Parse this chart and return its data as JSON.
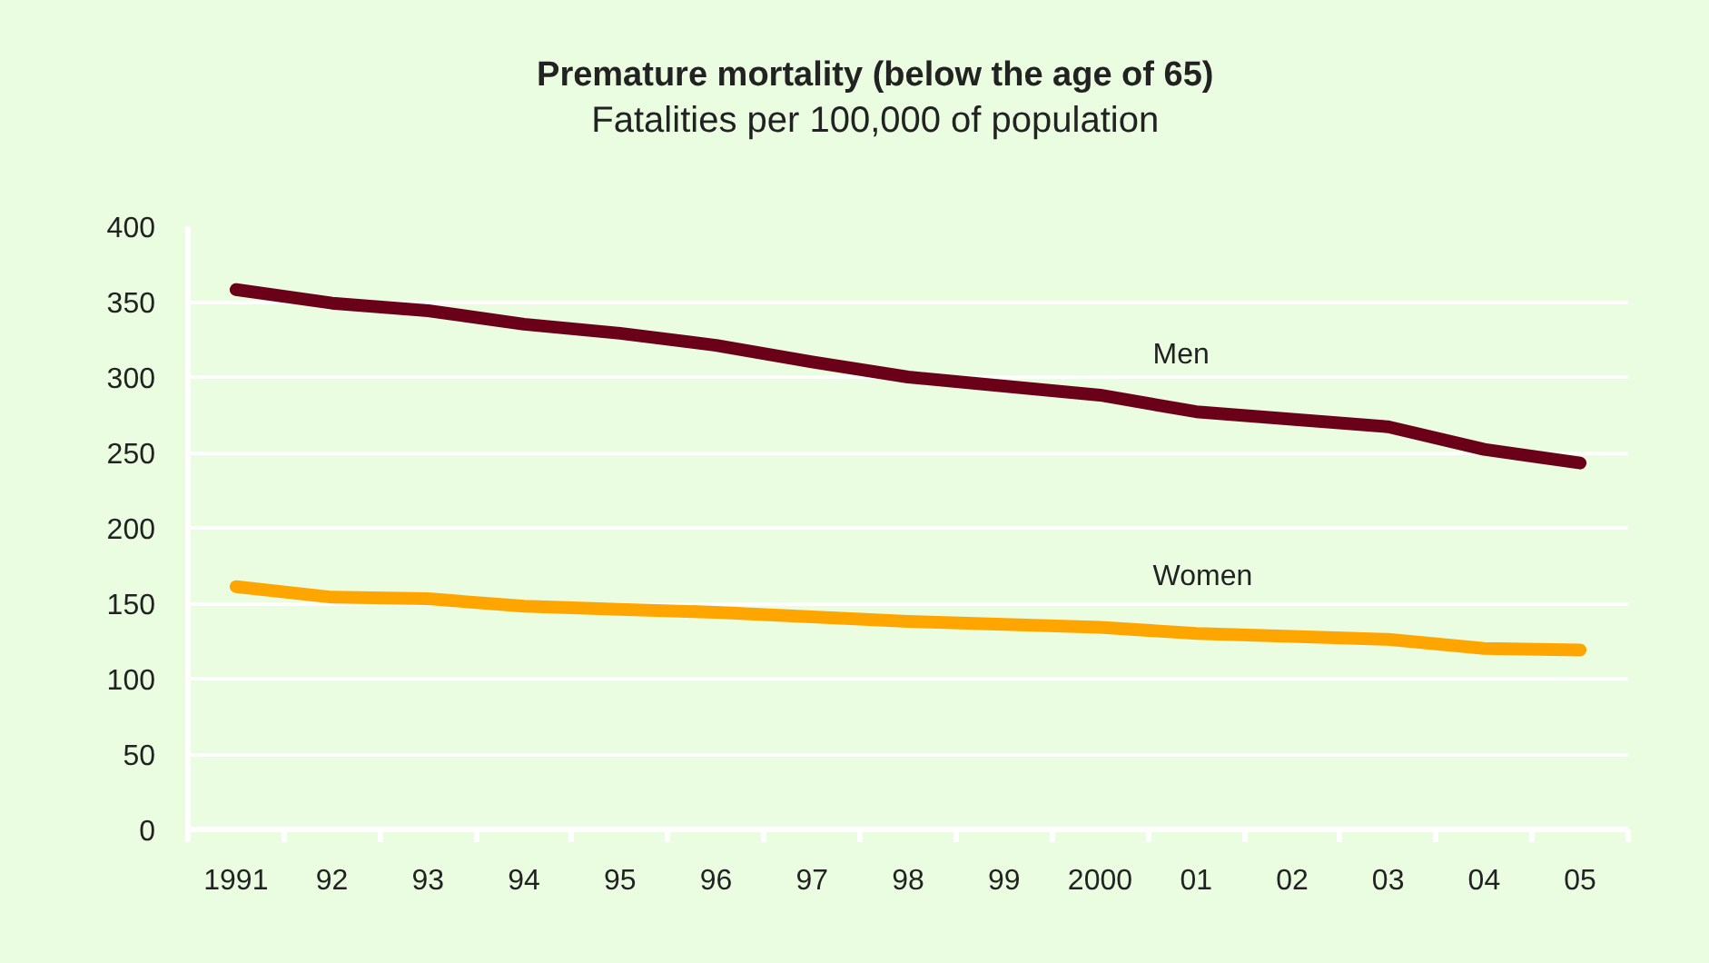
{
  "chart_data": {
    "type": "line",
    "title": "Premature mortality (below the age of 65)",
    "subtitle": "Fatalities per 100,000 of population",
    "categories": [
      "1991",
      "92",
      "93",
      "94",
      "95",
      "96",
      "97",
      "98",
      "99",
      "2000",
      "01",
      "02",
      "03",
      "04",
      "05"
    ],
    "series": [
      {
        "name": "Men",
        "color": "#6b0019",
        "values": [
          358,
          349,
          344,
          335,
          329,
          321,
          310,
          300,
          294,
          288,
          277,
          272,
          267,
          252,
          243
        ]
      },
      {
        "name": "Women",
        "color": "#ffa500",
        "values": [
          161,
          154,
          153,
          148,
          146,
          144,
          141,
          138,
          136,
          134,
          130,
          128,
          126,
          120,
          119
        ]
      }
    ],
    "ylim": [
      0,
      400
    ],
    "yticks": [
      0,
      50,
      100,
      150,
      200,
      250,
      300,
      350,
      400
    ],
    "grid": "y",
    "line_style": "solid"
  }
}
